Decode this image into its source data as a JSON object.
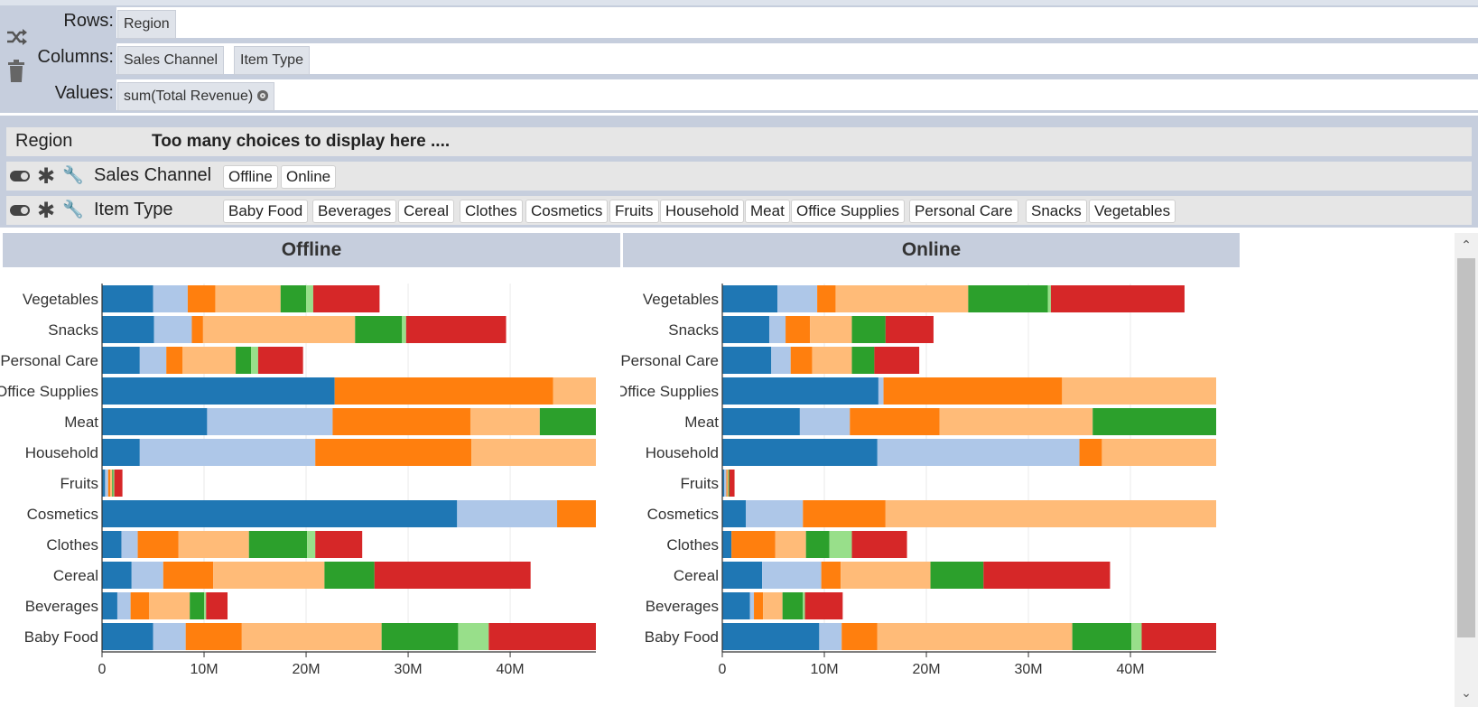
{
  "config": {
    "rows_label": "Rows:",
    "rows_fields": [
      "Region"
    ],
    "columns_label": "Columns:",
    "columns_fields": [
      "Sales Channel",
      "Item Type"
    ],
    "values_label": "Values:",
    "values_fields": [
      "sum(Total Revenue)"
    ],
    "icons": [
      "shuffle-icon",
      "trash-icon",
      "gear-icon"
    ]
  },
  "filters": {
    "region": {
      "label": "Region",
      "message": "Too many choices to display here ...."
    },
    "sales_channel": {
      "label": "Sales Channel",
      "choices": [
        "Offline",
        "Online"
      ]
    },
    "item_type": {
      "label": "Item Type",
      "choices": [
        "Baby Food",
        "Beverages",
        "Cereal",
        "Clothes",
        "Cosmetics",
        "Fruits",
        "Household",
        "Meat",
        "Office Supplies",
        "Personal Care",
        "Snacks",
        "Vegetables"
      ]
    }
  },
  "colors": [
    "#1f77b4",
    "#aec7e8",
    "#ff7f0e",
    "#ffbb78",
    "#2ca02c",
    "#98df8a",
    "#d62728"
  ],
  "chart_data": [
    {
      "type": "bar",
      "orientation": "horizontal",
      "stacked": true,
      "title": "Offline",
      "categories": [
        "Vegetables",
        "Snacks",
        "Personal Care",
        "Office Supplies",
        "Meat",
        "Household",
        "Fruits",
        "Cosmetics",
        "Clothes",
        "Cereal",
        "Beverages",
        "Baby Food"
      ],
      "x_ticks": [
        "0",
        "10M",
        "20M",
        "30M",
        "40M"
      ],
      "xlim": [
        0,
        48400000
      ],
      "segments": [
        [
          5000000,
          3400000,
          2700000,
          6400000,
          2500000,
          700000,
          6500000
        ],
        [
          5100000,
          3700000,
          1100000,
          14900000,
          4600000,
          400000,
          9800000
        ],
        [
          3700000,
          2600000,
          1600000,
          5200000,
          1500000,
          700000,
          4400000
        ],
        [
          22800000,
          0,
          21400000,
          4200000,
          0,
          0,
          0
        ],
        [
          10300000,
          12300000,
          13500000,
          6800000,
          5500000,
          0,
          0
        ],
        [
          3700000,
          17200000,
          15300000,
          12200000,
          0,
          0,
          0
        ],
        [
          300000,
          300000,
          200000,
          200000,
          100000,
          100000,
          800000
        ],
        [
          34800000,
          9800000,
          3800000,
          0,
          0,
          0,
          0
        ],
        [
          1900000,
          1600000,
          4000000,
          6900000,
          5700000,
          800000,
          4600000
        ],
        [
          2900000,
          3100000,
          4900000,
          10900000,
          4900000,
          0,
          15300000
        ],
        [
          1500000,
          1300000,
          1800000,
          4000000,
          1400000,
          200000,
          2100000
        ],
        [
          5000000,
          3200000,
          5500000,
          13700000,
          7500000,
          3000000,
          10500000
        ]
      ]
    },
    {
      "type": "bar",
      "orientation": "horizontal",
      "stacked": true,
      "title": "Online",
      "categories": [
        "Vegetables",
        "Snacks",
        "Personal Care",
        "Office Supplies",
        "Meat",
        "Household",
        "Fruits",
        "Cosmetics",
        "Clothes",
        "Cereal",
        "Beverages",
        "Baby Food"
      ],
      "x_ticks": [
        "0",
        "10M",
        "20M",
        "30M",
        "40M"
      ],
      "xlim": [
        0,
        48400000
      ],
      "segments": [
        [
          5400000,
          3900000,
          1800000,
          13000000,
          7800000,
          300000,
          13100000
        ],
        [
          4600000,
          1600000,
          2400000,
          4100000,
          3300000,
          0,
          4700000
        ],
        [
          4800000,
          1900000,
          2100000,
          3900000,
          2200000,
          0,
          4400000
        ],
        [
          15300000,
          500000,
          17500000,
          15200000,
          0,
          0,
          0
        ],
        [
          7600000,
          4900000,
          8800000,
          15000000,
          12100000,
          0,
          0
        ],
        [
          15200000,
          19800000,
          2200000,
          11200000,
          0,
          0,
          0
        ],
        [
          200000,
          200000,
          100000,
          100000,
          100000,
          0,
          500000
        ],
        [
          2300000,
          5600000,
          8100000,
          32400000,
          0,
          0,
          0
        ],
        [
          900000,
          0,
          4300000,
          3000000,
          2300000,
          2200000,
          5400000
        ],
        [
          3900000,
          5800000,
          1900000,
          8800000,
          5200000,
          0,
          12400000
        ],
        [
          2700000,
          400000,
          900000,
          1900000,
          2000000,
          200000,
          3700000
        ],
        [
          9500000,
          2200000,
          3500000,
          19100000,
          5800000,
          1000000,
          7300000
        ]
      ]
    }
  ]
}
